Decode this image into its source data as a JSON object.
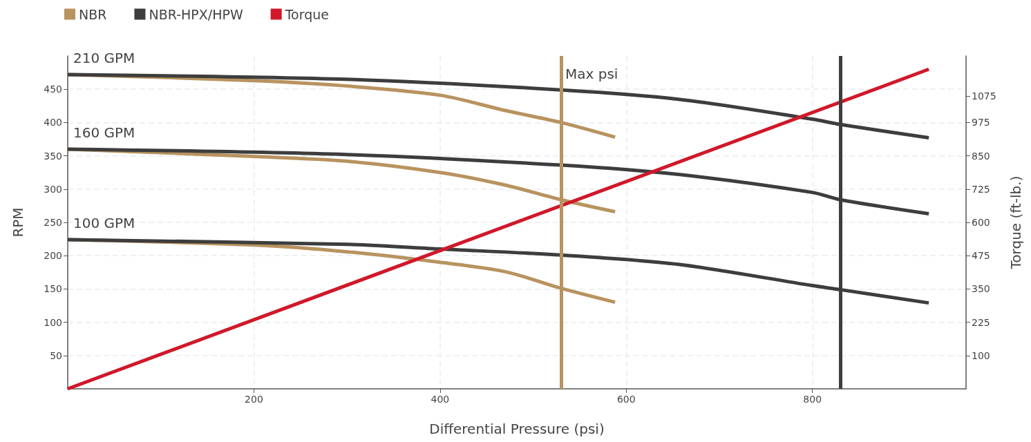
{
  "chart_data": {
    "type": "line",
    "xlabel": "Differential Pressure (psi)",
    "ylabel": "RPM",
    "y2label": "Torque (ft-lb.)",
    "xlim": [
      0,
      965
    ],
    "xticks": [
      200,
      400,
      600,
      800
    ],
    "ylim": [
      0,
      500
    ],
    "yticks": [
      50,
      100,
      150,
      200,
      250,
      300,
      350,
      400,
      450
    ],
    "y2lim": [
      -25,
      1225
    ],
    "y2ticks": [
      100,
      225,
      350,
      475,
      600,
      725,
      850,
      975,
      1075
    ],
    "grid": true,
    "legend": "top left",
    "marker": "none",
    "line_style": "solid",
    "series": [
      {
        "name": "NBR",
        "color": "#b8935f",
        "x": [
          0,
          200,
          299,
          400,
          470,
          530,
          588
        ],
        "values": [
          472,
          463,
          455,
          441,
          418,
          400,
          378
        ]
      },
      {
        "color": "#b8935f",
        "x": [
          0,
          200,
          299,
          400,
          470,
          530,
          588
        ],
        "values": [
          360,
          349,
          342,
          325,
          306,
          284,
          266
        ]
      },
      {
        "color": "#b8935f",
        "x": [
          0,
          200,
          299,
          400,
          470,
          530,
          588
        ],
        "values": [
          224,
          216,
          206,
          190,
          176,
          151,
          130
        ]
      },
      {
        "name": "NBR-HPX/HPW",
        "color": "#3d3d3d",
        "x": [
          0,
          299,
          530,
          656,
          800,
          830,
          925
        ],
        "values": [
          472,
          465,
          449,
          435,
          405,
          397,
          377
        ]
      },
      {
        "color": "#3d3d3d",
        "x": [
          0,
          299,
          530,
          656,
          800,
          830,
          925
        ],
        "values": [
          360,
          352,
          336,
          322,
          295,
          284,
          263
        ]
      },
      {
        "color": "#3d3d3d",
        "x": [
          0,
          299,
          400,
          530,
          656,
          800,
          830,
          925
        ],
        "values": [
          224,
          217,
          210,
          201,
          187,
          155,
          149,
          129
        ]
      },
      {
        "name": "Torque",
        "color": "#d0182a",
        "axis": "y2",
        "x": [
          0,
          925
        ],
        "values": [
          -25,
          1175
        ]
      }
    ],
    "ref_lines": [
      {
        "axis": "x",
        "value": 530,
        "label": "Max psi",
        "color": "#b8935f"
      },
      {
        "axis": "x",
        "value": 830,
        "color": "#3d3d3d"
      }
    ],
    "annotations": [
      "210 GPM",
      "160 GPM",
      "100 GPM"
    ]
  }
}
